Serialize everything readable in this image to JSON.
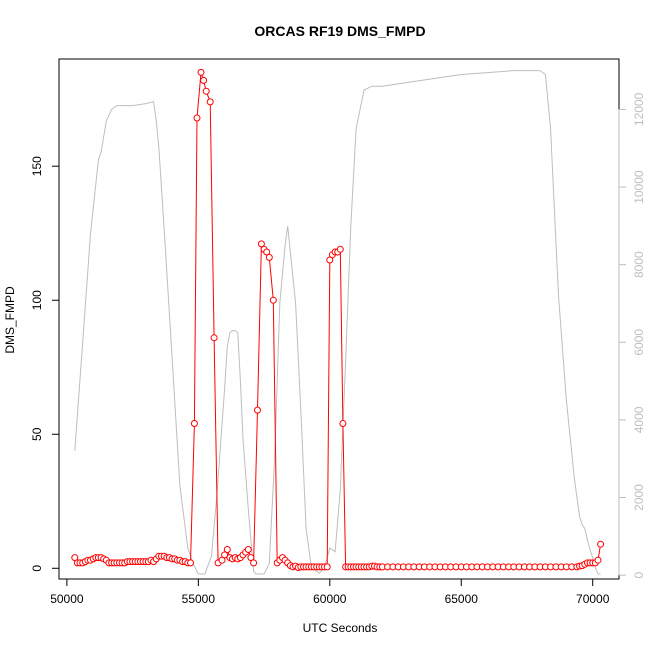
{
  "chart_data": {
    "type": "line",
    "title": "ORCAS RF19 DMS_FMPD",
    "xlabel": "UTC Seconds",
    "ylabel": "DMS_FMPD",
    "y2label": "",
    "xlim": [
      49700,
      71000
    ],
    "ylim": [
      -4,
      190
    ],
    "y2lim": [
      -100,
      13300
    ],
    "x_ticks": [
      50000,
      55000,
      60000,
      65000,
      70000
    ],
    "y_ticks": [
      0,
      50,
      100,
      150
    ],
    "y2_ticks": [
      0,
      2000,
      4000,
      6000,
      8000,
      10000,
      12000
    ],
    "grid": false,
    "colors": {
      "dms": "#ff0000",
      "altitude": "#bebebe",
      "axes": "#000000"
    },
    "series": [
      {
        "axis": "left",
        "style": "line+points",
        "x": [
          50300,
          50400,
          50500,
          50600,
          50700,
          50800,
          50900,
          51000,
          51100,
          51200,
          51300,
          51400,
          51500,
          51600,
          51700,
          51800,
          51900,
          52000,
          52100,
          52200,
          52300,
          52400,
          52500,
          52600,
          52700,
          52800,
          52900,
          53000,
          53100,
          53200,
          53300,
          53400,
          53500,
          53600,
          53700,
          53800,
          53900,
          54000,
          54100,
          54200,
          54300,
          54400,
          54500,
          54600,
          54700,
          54850,
          54950,
          55100,
          55200,
          55300,
          55450,
          55600,
          55750,
          55900,
          56000,
          56100,
          56200,
          56300,
          56400,
          56500,
          56600,
          56700,
          56800,
          56900,
          57000,
          57100,
          57250,
          57400,
          57500,
          57600,
          57700,
          57850,
          58000,
          58100,
          58200,
          58300,
          58400,
          58500,
          58600,
          58700,
          58800,
          58900,
          59000,
          59100,
          59200,
          59300,
          59400,
          59500,
          59600,
          59700,
          59800,
          59900,
          60000,
          60100,
          60200,
          60300,
          60400,
          60500,
          60600,
          60700,
          60800,
          60900,
          61000,
          61100,
          61200,
          61300,
          61400,
          61500,
          61600,
          61700,
          61800,
          61900,
          62000,
          62200,
          62400,
          62600,
          62800,
          63000,
          63200,
          63400,
          63600,
          63800,
          64000,
          64200,
          64400,
          64600,
          64800,
          65000,
          65200,
          65400,
          65600,
          65800,
          66000,
          66200,
          66400,
          66600,
          66800,
          67000,
          67200,
          67400,
          67600,
          67800,
          68000,
          68200,
          68400,
          68600,
          68800,
          69000,
          69200,
          69400,
          69500,
          69600,
          69700,
          69800,
          69900,
          70000,
          70100,
          70200,
          70300
        ],
        "y": [
          4,
          2,
          2,
          2,
          2.5,
          3,
          3,
          3.5,
          4,
          4,
          4,
          3.5,
          3,
          2,
          2,
          2,
          2,
          2,
          2,
          2,
          2.5,
          2.5,
          2.5,
          2.5,
          2.5,
          2.5,
          2.5,
          2.5,
          2.5,
          3,
          2.5,
          3.5,
          4.5,
          4.5,
          4.5,
          4,
          4,
          3.5,
          3.5,
          3,
          3,
          2.5,
          2.5,
          2,
          2,
          54,
          168,
          185,
          182,
          178,
          174,
          86,
          2,
          3,
          5,
          7,
          4,
          3.5,
          4,
          3.5,
          4,
          5,
          6,
          7,
          4,
          2,
          59,
          121,
          119,
          118,
          116,
          100,
          2,
          3,
          4,
          3,
          2,
          1,
          0.5,
          0.8,
          0.3,
          0.5,
          0.5,
          0.5,
          0.5,
          0.5,
          0.5,
          0.5,
          0.5,
          0.5,
          0.5,
          0.5,
          115,
          117,
          118,
          118,
          119,
          54,
          0.5,
          0.5,
          0.5,
          0.5,
          0.5,
          0.5,
          0.5,
          0.5,
          0.5,
          0.5,
          0.8,
          0.8,
          0.5,
          0.5,
          0.5,
          0.5,
          0.5,
          0.5,
          0.5,
          0.5,
          0.5,
          0.5,
          0.5,
          0.5,
          0.5,
          0.5,
          0.5,
          0.5,
          0.5,
          0.5,
          0.5,
          0.5,
          0.5,
          0.5,
          0.5,
          0.5,
          0.5,
          0.5,
          0.5,
          0.5,
          0.5,
          0.5,
          0.5,
          0.5,
          0.5,
          0.5,
          0.5,
          0.5,
          0.5,
          0.5,
          0.5,
          0.5,
          0.8,
          1,
          1.5,
          2,
          2,
          2,
          2,
          3,
          9
        ]
      },
      {
        "axis": "right",
        "style": "line",
        "x": [
          50300,
          50600,
          50900,
          51200,
          51300,
          51500,
          51700,
          51900,
          52500,
          53000,
          53300,
          53400,
          53500,
          53700,
          54000,
          54300,
          54600,
          54800,
          55000,
          55050,
          55250,
          55500,
          55700,
          56000,
          56100,
          56200,
          56300,
          56400,
          56500,
          56600,
          56700,
          56900,
          57100,
          57200,
          57300,
          57500,
          57700,
          57900,
          58100,
          58300,
          58400,
          58700,
          58900,
          59100,
          59300,
          59600,
          59800,
          60000,
          60200,
          60400,
          60600,
          60800,
          61000,
          61300,
          61600,
          61800,
          62000,
          62500,
          63000,
          64000,
          65000,
          66000,
          67000,
          68000,
          68200,
          68400,
          68500,
          68700,
          69000,
          69300,
          69500,
          69600,
          69700,
          69800,
          69900,
          70000,
          70100,
          70200,
          70300
        ],
        "y": [
          3200,
          6000,
          8800,
          10700,
          10900,
          11700,
          12000,
          12100,
          12100,
          12150,
          12200,
          11700,
          11000,
          8900,
          5600,
          2300,
          700,
          300,
          30,
          30,
          30,
          500,
          2000,
          4800,
          5900,
          6250,
          6300,
          6300,
          6250,
          5000,
          3500,
          1700,
          100,
          30,
          30,
          30,
          300,
          3000,
          7000,
          8500,
          9000,
          7000,
          4200,
          1200,
          200,
          50,
          200,
          700,
          600,
          2200,
          5500,
          9000,
          11500,
          12500,
          12600,
          12600,
          12600,
          12650,
          12700,
          12800,
          12900,
          12950,
          13000,
          13000,
          12900,
          11500,
          10000,
          7200,
          4500,
          2500,
          1500,
          1300,
          1200,
          900,
          650,
          450,
          200,
          30,
          30
        ]
      }
    ]
  }
}
